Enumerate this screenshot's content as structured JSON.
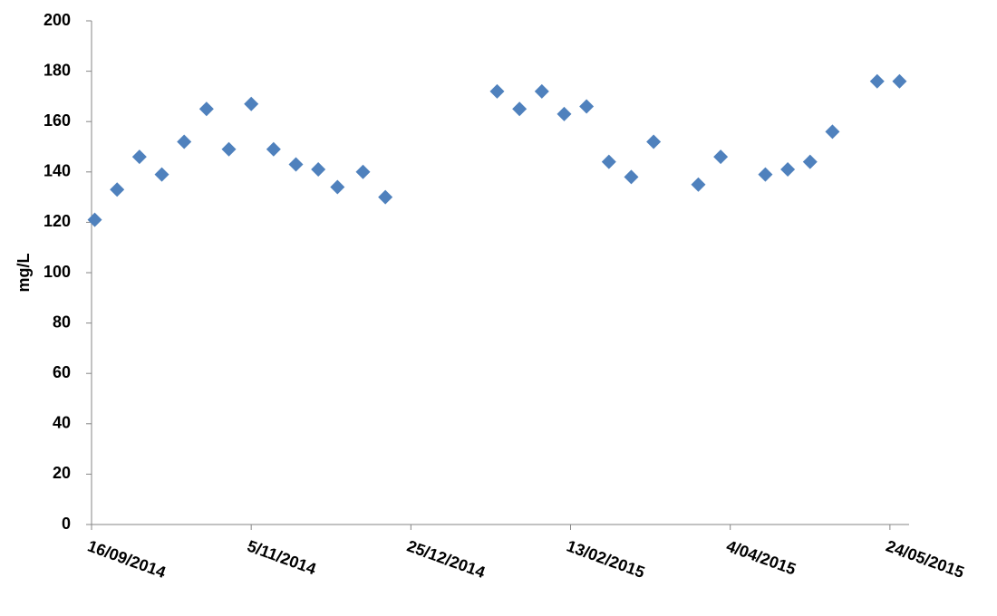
{
  "chart_data": {
    "type": "scatter",
    "y_label": "mg/L",
    "x": [
      "2014-09-17",
      "2014-09-24",
      "2014-10-01",
      "2014-10-08",
      "2014-10-15",
      "2014-10-22",
      "2014-10-29",
      "2014-11-05",
      "2014-11-12",
      "2014-11-19",
      "2014-11-26",
      "2014-12-02",
      "2014-12-10",
      "2014-12-17",
      "2015-01-21",
      "2015-01-28",
      "2015-02-04",
      "2015-02-11",
      "2015-02-18",
      "2015-02-25",
      "2015-03-04",
      "2015-03-11",
      "2015-03-25",
      "2015-04-01",
      "2015-04-15",
      "2015-04-22",
      "2015-04-29",
      "2015-05-06",
      "2015-05-20",
      "2015-05-27"
    ],
    "values": [
      121,
      133,
      146,
      139,
      152,
      165,
      149,
      167,
      149,
      143,
      141,
      134,
      140,
      130,
      172,
      165,
      172,
      163,
      166,
      144,
      138,
      152,
      135,
      146,
      139,
      141,
      144,
      156,
      176,
      176
    ],
    "color": "#4f81bd",
    "xlim": [
      "2014-09-16",
      "2015-05-30"
    ],
    "xticks": [
      {
        "value": "2014-09-16",
        "label": "16/09/2014"
      },
      {
        "value": "2014-11-05",
        "label": "5/11/2014"
      },
      {
        "value": "2014-12-25",
        "label": "25/12/2014"
      },
      {
        "value": "2015-02-13",
        "label": "13/02/2015"
      },
      {
        "value": "2015-04-04",
        "label": "4/04/2015"
      },
      {
        "value": "2015-05-24",
        "label": "24/05/2015"
      }
    ],
    "ylim": [
      0,
      200
    ],
    "yticks": [
      0,
      20,
      40,
      60,
      80,
      100,
      120,
      140,
      160,
      180,
      200
    ],
    "grid": false
  }
}
